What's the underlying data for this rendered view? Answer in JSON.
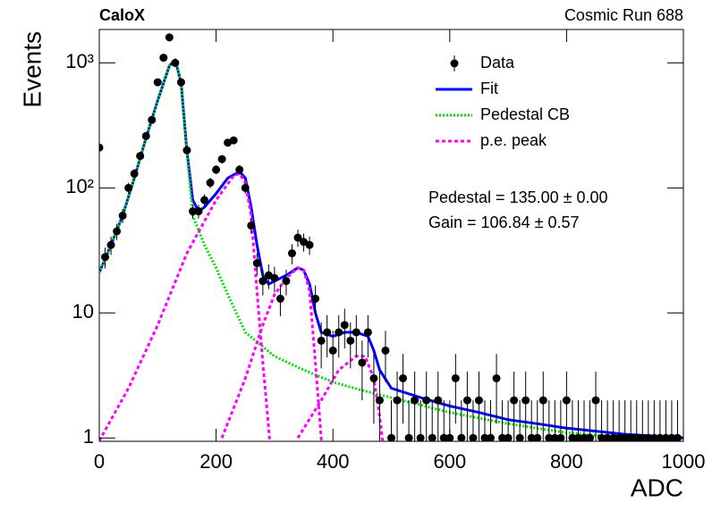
{
  "chart_data": {
    "type": "scatter",
    "title": "CaloX",
    "subtitle": "Cosmic Run 688",
    "x_label": "ADC",
    "y_label": "Events",
    "log_y": true,
    "xlim": [
      0,
      1000
    ],
    "xticks": [
      0,
      200,
      400,
      600,
      800,
      1000
    ],
    "ylim": [
      0.94,
      1850
    ],
    "yticks": [
      1,
      10,
      {
        "value": 100,
        "label": "10²"
      },
      {
        "value": 1000,
        "label": "10³"
      }
    ],
    "annotations": [
      "Pedestal = 135.00 ± 0.00",
      "Gain = 106.84 ± 0.57"
    ],
    "series": [
      {
        "name": "Data",
        "type": "points",
        "color": "#000000",
        "x": [
          0,
          10,
          20,
          30,
          40,
          50,
          60,
          70,
          80,
          90,
          100,
          110,
          120,
          130,
          140,
          150,
          160,
          170,
          180,
          190,
          200,
          210,
          220,
          230,
          240,
          250,
          260,
          270,
          280,
          290,
          300,
          310,
          320,
          330,
          340,
          350,
          360,
          370,
          380,
          390,
          400,
          410,
          420,
          430,
          440,
          450,
          460,
          470,
          480,
          490,
          500,
          510,
          520,
          530,
          540,
          550,
          560,
          570,
          580,
          590,
          600,
          610,
          620,
          630,
          640,
          650,
          660,
          670,
          680,
          690,
          700,
          710,
          720,
          730,
          740,
          750,
          760,
          770,
          780,
          790,
          800,
          810,
          820,
          830,
          840,
          850,
          860,
          870,
          880,
          890,
          900,
          910,
          920,
          930,
          940,
          950,
          960,
          970,
          980,
          990
        ],
        "values": [
          210,
          28,
          35,
          45,
          60,
          100,
          130,
          180,
          260,
          350,
          700,
          1100,
          1600,
          1000,
          700,
          200,
          65,
          65,
          80,
          110,
          140,
          170,
          230,
          240,
          140,
          100,
          50,
          25,
          18,
          20,
          19,
          13,
          18,
          30,
          40,
          37,
          35,
          13,
          6,
          7,
          5,
          7,
          8,
          6,
          7,
          4,
          7,
          3,
          2,
          5,
          1,
          2,
          3,
          1,
          2,
          1,
          2,
          1,
          2,
          1,
          1,
          3,
          1,
          2,
          1,
          2,
          1,
          1,
          3,
          1,
          1,
          2,
          1,
          2,
          1,
          1,
          2,
          1,
          1,
          1,
          2,
          1,
          1,
          1,
          1,
          2,
          1,
          1,
          1,
          1,
          1,
          1,
          1,
          1,
          1,
          1,
          1,
          1,
          1,
          1
        ],
        "errors": [
          14.5,
          5.3,
          5.9,
          6.7,
          7.7,
          10,
          11.4,
          13.4,
          16.1,
          18.7,
          26.5,
          33.2,
          40,
          31.6,
          26.5,
          14.1,
          8.1,
          8.1,
          8.9,
          10.5,
          11.8,
          13,
          15.2,
          15.5,
          11.8,
          10,
          7.1,
          5,
          4.2,
          4.5,
          4.4,
          3.6,
          4.2,
          5.5,
          6.3,
          6.1,
          5.9,
          3.6,
          2.4,
          2.6,
          2.2,
          2.6,
          2.8,
          2.4,
          2.6,
          2,
          2.6,
          1.7,
          1.4,
          2.2,
          1,
          1.4,
          1.7,
          1,
          1.4,
          1,
          1.4,
          1,
          1.4,
          1,
          1,
          1.7,
          1,
          1.4,
          1,
          1.4,
          1,
          1,
          1.7,
          1,
          1,
          1.4,
          1,
          1.4,
          1,
          1,
          1.4,
          1,
          1,
          1,
          1.4,
          1,
          1,
          1,
          1,
          1.4,
          1,
          1,
          1,
          1,
          1,
          1,
          1,
          1,
          1,
          1,
          1,
          1,
          1,
          1
        ]
      },
      {
        "name": "Fit",
        "type": "line",
        "color": "#0000ff",
        "x": [
          0,
          20,
          40,
          60,
          80,
          100,
          120,
          130,
          140,
          150,
          160,
          170,
          180,
          200,
          220,
          240,
          250,
          260,
          270,
          280,
          290,
          300,
          320,
          340,
          350,
          360,
          370,
          380,
          400,
          420,
          440,
          460,
          470,
          480,
          500,
          550,
          600,
          650,
          700,
          750,
          800,
          900,
          1000
        ],
        "values": [
          21,
          35,
          60,
          120,
          250,
          500,
          950,
          1050,
          700,
          200,
          80,
          65,
          70,
          90,
          120,
          135,
          120,
          70,
          35,
          20,
          17,
          18,
          20,
          23,
          22,
          17,
          10,
          7,
          6.5,
          7,
          7,
          6.5,
          5,
          3.5,
          2.5,
          2.1,
          1.8,
          1.6,
          1.4,
          1.3,
          1.2,
          1.07,
          1
        ]
      },
      {
        "name": "Pedestal CB",
        "type": "line",
        "color": "#00e000",
        "dash": "2 2",
        "x": [
          0,
          20,
          40,
          60,
          80,
          100,
          120,
          130,
          140,
          150,
          160,
          180,
          200,
          220,
          250,
          300,
          350,
          400,
          450,
          500,
          600,
          700,
          800,
          900,
          1000
        ],
        "values": [
          21,
          35,
          60,
          120,
          250,
          500,
          950,
          1050,
          700,
          200,
          60,
          35,
          23,
          14,
          7,
          4.5,
          3.5,
          2.8,
          2.4,
          2.1,
          1.6,
          1.3,
          1.1,
          1,
          0.95
        ]
      },
      {
        "name": "p.e. peak",
        "type": "segments",
        "color": "#ff00ff",
        "dash": "4 3",
        "segments": [
          {
            "x": [
              0,
              50,
              100,
              150,
              200,
              230,
              240,
              250,
              260,
              270,
              280,
              290,
              300
            ],
            "values": [
              0.95,
              2.5,
              8,
              30,
              80,
              125,
              130,
              110,
              60,
              15,
              4,
              1.2,
              0.3
            ]
          },
          {
            "x": [
              210,
              250,
              280,
              300,
              320,
              340,
              350,
              360,
              370,
              380,
              390
            ],
            "values": [
              1,
              3,
              8,
              14,
              19,
              23,
              22,
              15,
              4,
              1,
              0.3
            ]
          },
          {
            "x": [
              340,
              380,
              410,
              440,
              455,
              470,
              480,
              490
            ],
            "values": [
              1,
              2,
              3.5,
              4.5,
              4.5,
              3,
              1.5,
              0.6
            ]
          }
        ]
      }
    ]
  }
}
